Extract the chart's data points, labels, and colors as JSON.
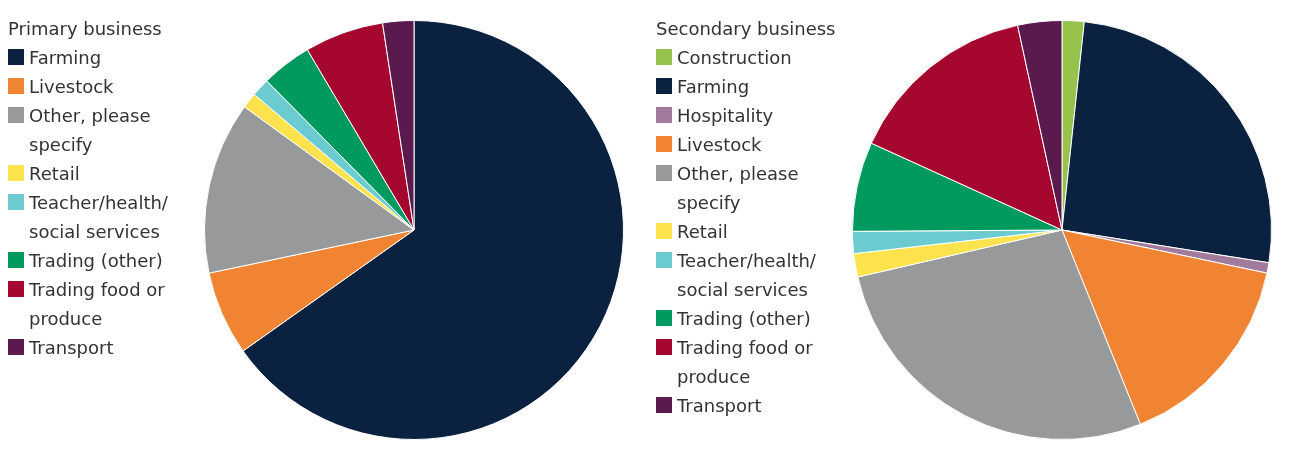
{
  "chart_data": [
    {
      "type": "pie",
      "legend_title": "Primary business",
      "legend": "left",
      "categories": [
        "Farming",
        "Livestock",
        "Other, please specify",
        "Retail",
        "Teacher/health/ social services",
        "Trading (other)",
        "Trading food or produce",
        "Transport"
      ],
      "values": [
        65.2,
        6.5,
        13.3,
        1.2,
        1.4,
        3.9,
        6.1,
        2.4
      ],
      "colors": [
        "#0a2240",
        "#f08432",
        "#97999b",
        "#fce34d",
        "#6ccbd0",
        "#009a5e",
        "#a6072e",
        "#5a1a4e"
      ]
    },
    {
      "type": "pie",
      "legend_title": "Secondary business",
      "legend": "left",
      "categories": [
        "Construction",
        "Farming",
        "Hospitality",
        "Livestock",
        "Other, please specify",
        "Retail",
        "Teacher/health/ social services",
        "Trading (other)",
        "Trading food or produce",
        "Transport"
      ],
      "values": [
        1.7,
        25.8,
        0.8,
        15.6,
        27.5,
        1.8,
        1.7,
        6.9,
        14.8,
        3.4
      ],
      "colors": [
        "#97c24c",
        "#0a2240",
        "#a27b9c",
        "#f08432",
        "#97999b",
        "#fce34d",
        "#6ccbd0",
        "#009a5e",
        "#a6072e",
        "#5a1a4e"
      ]
    }
  ]
}
